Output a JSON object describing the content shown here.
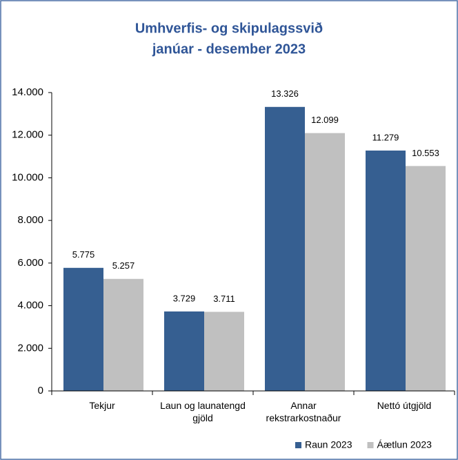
{
  "chart_data": {
    "type": "bar",
    "title": [
      "Umhverfis- og skipulagssvið",
      "janúar - desember 2023"
    ],
    "categories": [
      "Tekjur",
      "Laun og launatengd gjöld",
      "Annar rekstrarkostnaður",
      "Nettó útgjöld"
    ],
    "series": [
      {
        "name": "Raun 2023",
        "color": "#365f91",
        "values": [
          5775,
          3729,
          13326,
          11279
        ],
        "value_labels": [
          "5.775",
          "3.729",
          "13.326",
          "11.279"
        ]
      },
      {
        "name": "Áætlun 2023",
        "color": "#c0c0c0",
        "values": [
          5257,
          3711,
          12099,
          10553
        ],
        "value_labels": [
          "5.257",
          "3.711",
          "12.099",
          "10.553"
        ]
      }
    ],
    "ylim": [
      0,
      14000
    ],
    "yticks": [
      {
        "value": 0,
        "label": "0"
      },
      {
        "value": 2000,
        "label": "2.000"
      },
      {
        "value": 4000,
        "label": "4.000"
      },
      {
        "value": 6000,
        "label": "6.000"
      },
      {
        "value": 8000,
        "label": "8.000"
      },
      {
        "value": 10000,
        "label": "10.000"
      },
      {
        "value": 12000,
        "label": "12.000"
      },
      {
        "value": 14000,
        "label": "14.000"
      }
    ],
    "legend": "bottom-right"
  }
}
